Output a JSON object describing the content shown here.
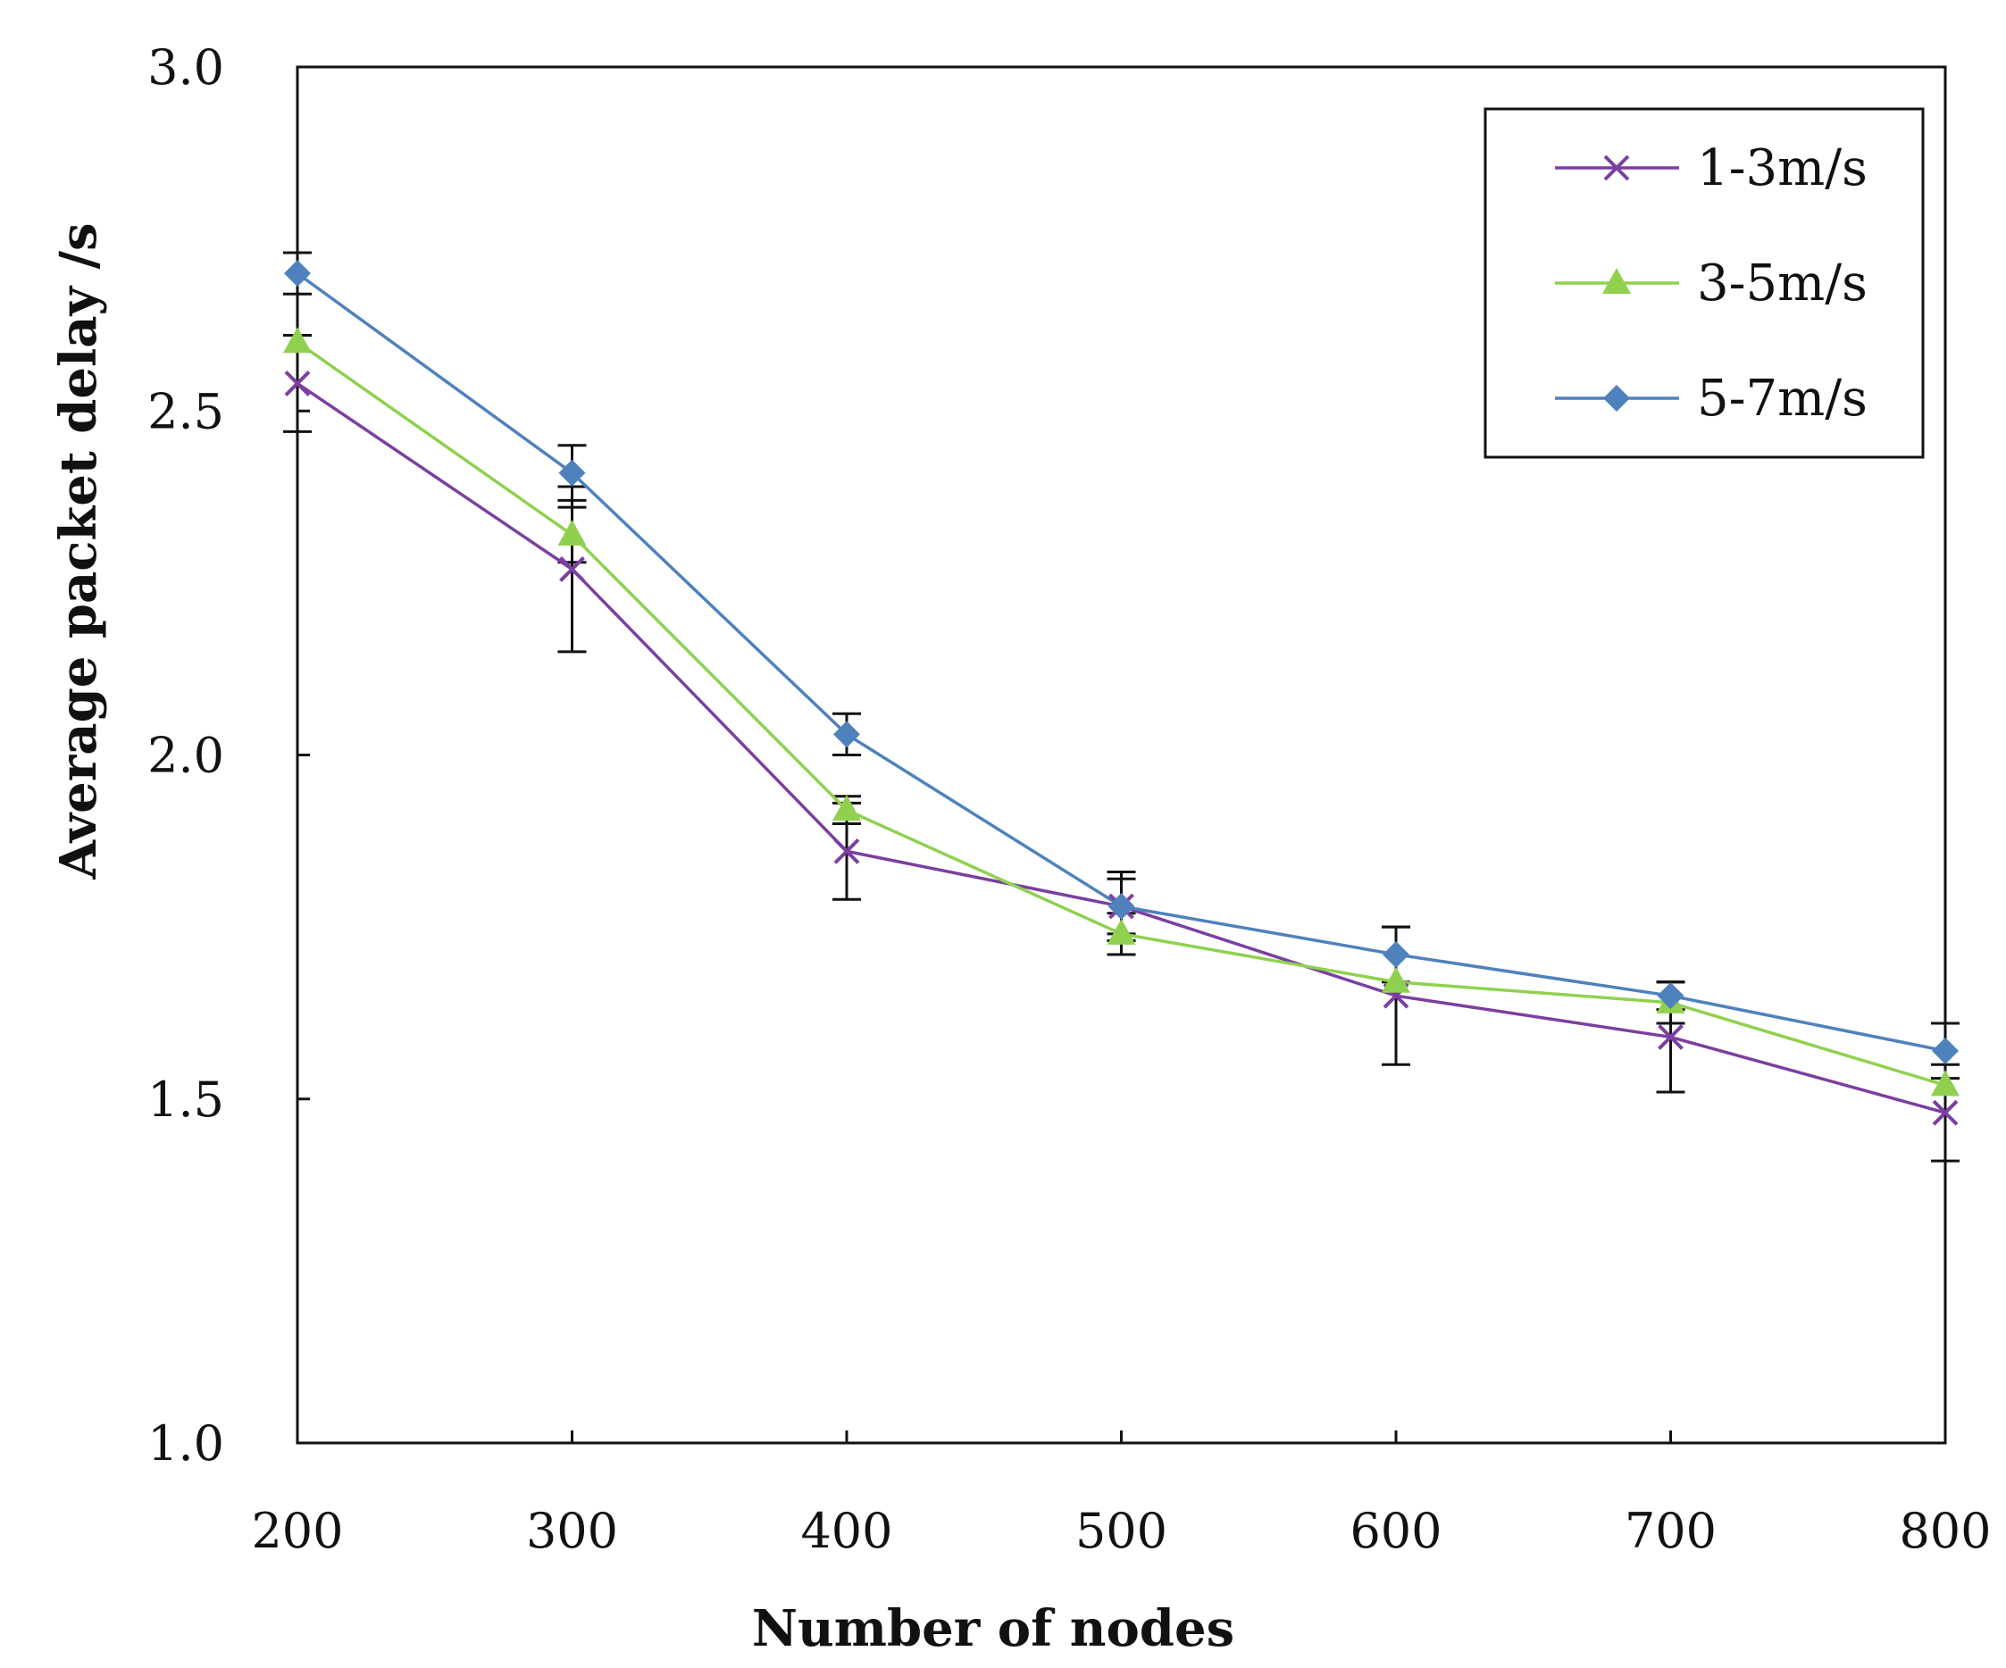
{
  "chart_data": {
    "type": "line",
    "xlabel": "Number of nodes",
    "ylabel": "Average packet delay /s",
    "x": [
      200,
      300,
      400,
      500,
      600,
      700,
      800
    ],
    "x_tick_labels": [
      "200",
      "300",
      "400",
      "500",
      "600",
      "700",
      "800"
    ],
    "xlim": [
      200,
      800
    ],
    "ylim": [
      1.0,
      3.0
    ],
    "y_ticks": [
      1.0,
      1.5,
      2.0,
      2.5,
      3.0
    ],
    "y_tick_labels": [
      "1.0",
      "1.5",
      "2.0",
      "2.5",
      "3.0"
    ],
    "grid": false,
    "legend_position": "top-right",
    "series": [
      {
        "name": "1-3m/s",
        "color": "#7B3FA0",
        "marker": "x",
        "values": [
          2.54,
          2.27,
          1.86,
          1.78,
          1.65,
          1.59,
          1.48
        ],
        "error": [
          0.07,
          0.12,
          0.07,
          0.04,
          0.1,
          0.08,
          0.07
        ]
      },
      {
        "name": "3-5m/s",
        "color": "#8FD14F",
        "marker": "triangle",
        "values": [
          2.6,
          2.32,
          1.92,
          1.74,
          1.67,
          1.64,
          1.52
        ],
        "error": [
          0.0,
          0.04,
          0.02,
          0.03,
          0.0,
          0.03,
          0.0
        ]
      },
      {
        "name": "5-7m/s",
        "color": "#4F81BD",
        "marker": "diamond",
        "values": [
          2.7,
          2.41,
          2.03,
          1.78,
          1.71,
          1.65,
          1.57
        ],
        "error": [
          0.03,
          0.04,
          0.03,
          0.05,
          0.04,
          0.02,
          0.04
        ]
      }
    ]
  }
}
